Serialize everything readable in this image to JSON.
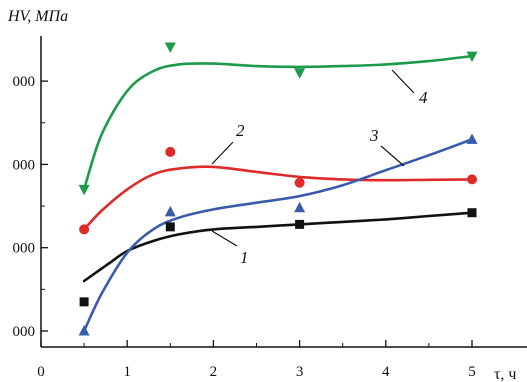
{
  "chart_data": {
    "type": "scatter",
    "ylabel": "HV, МПа",
    "xlabel": "τ, ч",
    "xlim": [
      0,
      5.2
    ],
    "ylim": [
      1800,
      5300
    ],
    "x_ticks": [
      0,
      1,
      2,
      3,
      4,
      5
    ],
    "x_tick_labels": [
      "0",
      "1",
      "2",
      "3",
      "4",
      "5"
    ],
    "y_ticks": [
      2000,
      3000,
      4000,
      5000
    ],
    "y_tick_labels": [
      "000",
      "000",
      "000",
      "000"
    ],
    "grid": false,
    "legend": "none",
    "series": [
      {
        "name": "1",
        "color": "#111111",
        "marker": "square",
        "x": [
          0.5,
          1.5,
          3,
          5
        ],
        "y": [
          2350,
          3250,
          3280,
          3420
        ],
        "curve_x": [
          0.5,
          0.8,
          1.0,
          1.3,
          1.6,
          2.0,
          2.5,
          3.0,
          3.5,
          4.0,
          4.5,
          5.0
        ],
        "curve_y": [
          2600,
          2820,
          2960,
          3080,
          3160,
          3220,
          3250,
          3280,
          3310,
          3340,
          3380,
          3420
        ]
      },
      {
        "name": "2",
        "color": "#e02a2a",
        "marker": "circle",
        "x": [
          0.5,
          1.5,
          3,
          5
        ],
        "y": [
          3220,
          4150,
          3780,
          3820
        ],
        "curve_x": [
          0.5,
          0.7,
          1.0,
          1.3,
          1.6,
          2.0,
          2.5,
          3.0,
          3.5,
          4.0,
          4.5,
          5.0
        ],
        "curve_y": [
          3220,
          3440,
          3700,
          3880,
          3950,
          3970,
          3910,
          3850,
          3820,
          3810,
          3815,
          3820
        ]
      },
      {
        "name": "3",
        "color": "#3a5bab",
        "marker": "triangle-up",
        "x": [
          0.5,
          1.5,
          3,
          5
        ],
        "y": [
          2000,
          3430,
          3480,
          4300
        ],
        "curve_x": [
          0.5,
          0.7,
          1.0,
          1.3,
          1.6,
          2.0,
          2.5,
          3.0,
          3.5,
          4.0,
          4.5,
          5.0
        ],
        "curve_y": [
          2000,
          2440,
          2940,
          3220,
          3360,
          3460,
          3540,
          3620,
          3750,
          3930,
          4110,
          4300
        ]
      },
      {
        "name": "4",
        "color": "#1e9a4b",
        "marker": "triangle-down",
        "x": [
          0.5,
          1.5,
          3,
          5
        ],
        "y": [
          3700,
          5410,
          5100,
          5300
        ],
        "curve_x": [
          0.5,
          0.7,
          1.0,
          1.3,
          1.6,
          2.0,
          2.5,
          3.0,
          3.5,
          4.0,
          4.5,
          5.0
        ],
        "curve_y": [
          3700,
          4350,
          4880,
          5120,
          5200,
          5210,
          5180,
          5170,
          5180,
          5200,
          5240,
          5300
        ]
      }
    ],
    "curve_labels": [
      {
        "text": "1",
        "series": "1",
        "x": 2.0,
        "y": 3000
      },
      {
        "text": "2",
        "series": "2",
        "x": 2.1,
        "y": 4380
      },
      {
        "text": "3",
        "series": "3",
        "x": 3.9,
        "y": 4330
      },
      {
        "text": "4",
        "series": "4",
        "x": 4.2,
        "y": 4890
      }
    ]
  }
}
